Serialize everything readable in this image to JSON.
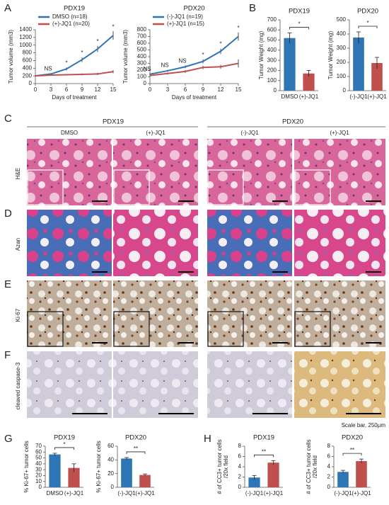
{
  "chart_data": [
    {
      "type": "line",
      "title": "PDX19",
      "xlabel": "Days of treatment",
      "ylabel": "Tumor volume (mm3)",
      "x": [
        0,
        3,
        6,
        9,
        12,
        15
      ],
      "xlim": [
        0,
        15
      ],
      "xticks": [
        0,
        3,
        6,
        9,
        12,
        15
      ],
      "ylim": [
        0,
        1400
      ],
      "yticks": [
        0,
        200,
        400,
        600,
        800,
        1000,
        1200,
        1400
      ],
      "series": [
        {
          "name": "DMSO (n=18)",
          "color": "#2e75b6",
          "values": [
            200,
            250,
            380,
            620,
            900,
            1250
          ],
          "errors": [
            10,
            20,
            40,
            60,
            80,
            110
          ]
        },
        {
          "name": "(+)-JQ1 (n=20)",
          "color": "#c0504d",
          "values": [
            200,
            220,
            230,
            240,
            250,
            310
          ],
          "errors": [
            10,
            15,
            20,
            25,
            30,
            40
          ]
        }
      ],
      "significance": [
        null,
        "NS",
        "*",
        "*",
        "*",
        "*"
      ]
    },
    {
      "type": "line",
      "title": "PDX20",
      "xlabel": "Days of treatment",
      "ylabel": "Tumor volume (mm3)",
      "x": [
        0,
        3,
        6,
        9,
        12,
        15
      ],
      "xlim": [
        0,
        15
      ],
      "xticks": [
        0,
        3,
        6,
        9,
        12,
        15
      ],
      "ylim": [
        0,
        800
      ],
      "yticks": [
        0,
        100,
        200,
        300,
        400,
        500,
        600,
        700,
        800
      ],
      "series": [
        {
          "name": "(-)-JQ1 (n=19)",
          "color": "#2e75b6",
          "values": [
            140,
            190,
            250,
            330,
            480,
            700
          ],
          "errors": [
            10,
            15,
            20,
            30,
            40,
            60
          ]
        },
        {
          "name": "(+)-JQ1 (n=15)",
          "color": "#c0504d",
          "values": [
            120,
            150,
            180,
            240,
            250,
            300
          ],
          "errors": [
            10,
            15,
            20,
            25,
            30,
            60
          ]
        }
      ],
      "significance": [
        "NS",
        "NS",
        "NS",
        "*",
        "*",
        "*"
      ]
    },
    {
      "type": "bar",
      "title": "PDX19",
      "ylabel": [
        "Tumor Weight (mg)"
      ],
      "categories": [
        "DMSO",
        "(+)-JQ1"
      ],
      "values": [
        520,
        170
      ],
      "errors": [
        50,
        30
      ],
      "colors": [
        "#2e75b6",
        "#c0504d"
      ],
      "ylim": [
        0,
        700
      ],
      "yticks": [
        0,
        100,
        200,
        300,
        400,
        500,
        600,
        700
      ],
      "significance": "*"
    },
    {
      "type": "bar",
      "title": "PDX20",
      "ylabel": [
        "Tumor Weight (mg)"
      ],
      "categories": [
        "(-)-JQ1",
        "(+)-JQ1"
      ],
      "values": [
        375,
        195
      ],
      "errors": [
        40,
        40
      ],
      "colors": [
        "#2e75b6",
        "#c0504d"
      ],
      "ylim": [
        0,
        500
      ],
      "yticks": [
        0,
        100,
        200,
        300,
        400,
        500
      ],
      "significance": "*"
    },
    {
      "type": "bar",
      "title": "PDX19",
      "ylabel": [
        "% Ki-67+ tumor cells"
      ],
      "categories": [
        "DMSO",
        "(+)-JQ1"
      ],
      "values": [
        56,
        33
      ],
      "errors": [
        2,
        7
      ],
      "colors": [
        "#2e75b6",
        "#c0504d"
      ],
      "ylim": [
        0,
        70
      ],
      "yticks": [
        0,
        10,
        20,
        30,
        40,
        50,
        60,
        70
      ],
      "significance": "*"
    },
    {
      "type": "bar",
      "title": "PDX20",
      "ylabel": [
        "% Ki-67+ tumor cells"
      ],
      "categories": [
        "(-)-JQ1",
        "(+)-JQ1"
      ],
      "values": [
        42,
        18
      ],
      "errors": [
        1.5,
        1.5
      ],
      "colors": [
        "#2e75b6",
        "#c0504d"
      ],
      "ylim": [
        0,
        60
      ],
      "yticks": [
        0,
        20,
        40,
        60
      ],
      "significance": "**"
    },
    {
      "type": "bar",
      "title": "PDX19",
      "ylabel": [
        "# of CC3+ tumor cells",
        "/20x field"
      ],
      "categories": [
        "(-)-JQ1",
        "(+)-JQ1"
      ],
      "values": [
        1.9,
        4.8
      ],
      "errors": [
        0.4,
        0.4
      ],
      "colors": [
        "#2e75b6",
        "#c0504d"
      ],
      "ylim": [
        0,
        8
      ],
      "yticks": [
        0,
        2,
        4,
        6,
        8
      ],
      "significance": "**"
    },
    {
      "type": "bar",
      "title": "PDX20",
      "ylabel": [
        "# of CC3+ tumor cells",
        "/20x field"
      ],
      "categories": [
        "(-)-JQ1",
        "(+)-JQ1"
      ],
      "values": [
        3.0,
        5.1
      ],
      "errors": [
        0.3,
        0.4
      ],
      "colors": [
        "#2e75b6",
        "#c0504d"
      ],
      "ylim": [
        0,
        8
      ],
      "yticks": [
        0,
        2,
        4,
        6,
        8
      ],
      "significance": "**"
    }
  ],
  "panels": [
    "A",
    "B",
    "C",
    "D",
    "E",
    "F",
    "G",
    "H"
  ],
  "images": {
    "groups": [
      "PDX19",
      "PDX20"
    ],
    "columns": [
      "DMSO",
      "(+)-JQ1",
      "(-)-JQ1",
      "(+)-JQ1"
    ],
    "rows": [
      "H&E",
      "Azan",
      "Ki-67",
      "cleaved caspase-3"
    ],
    "scale_bar": "Scale bar, 250μm"
  }
}
